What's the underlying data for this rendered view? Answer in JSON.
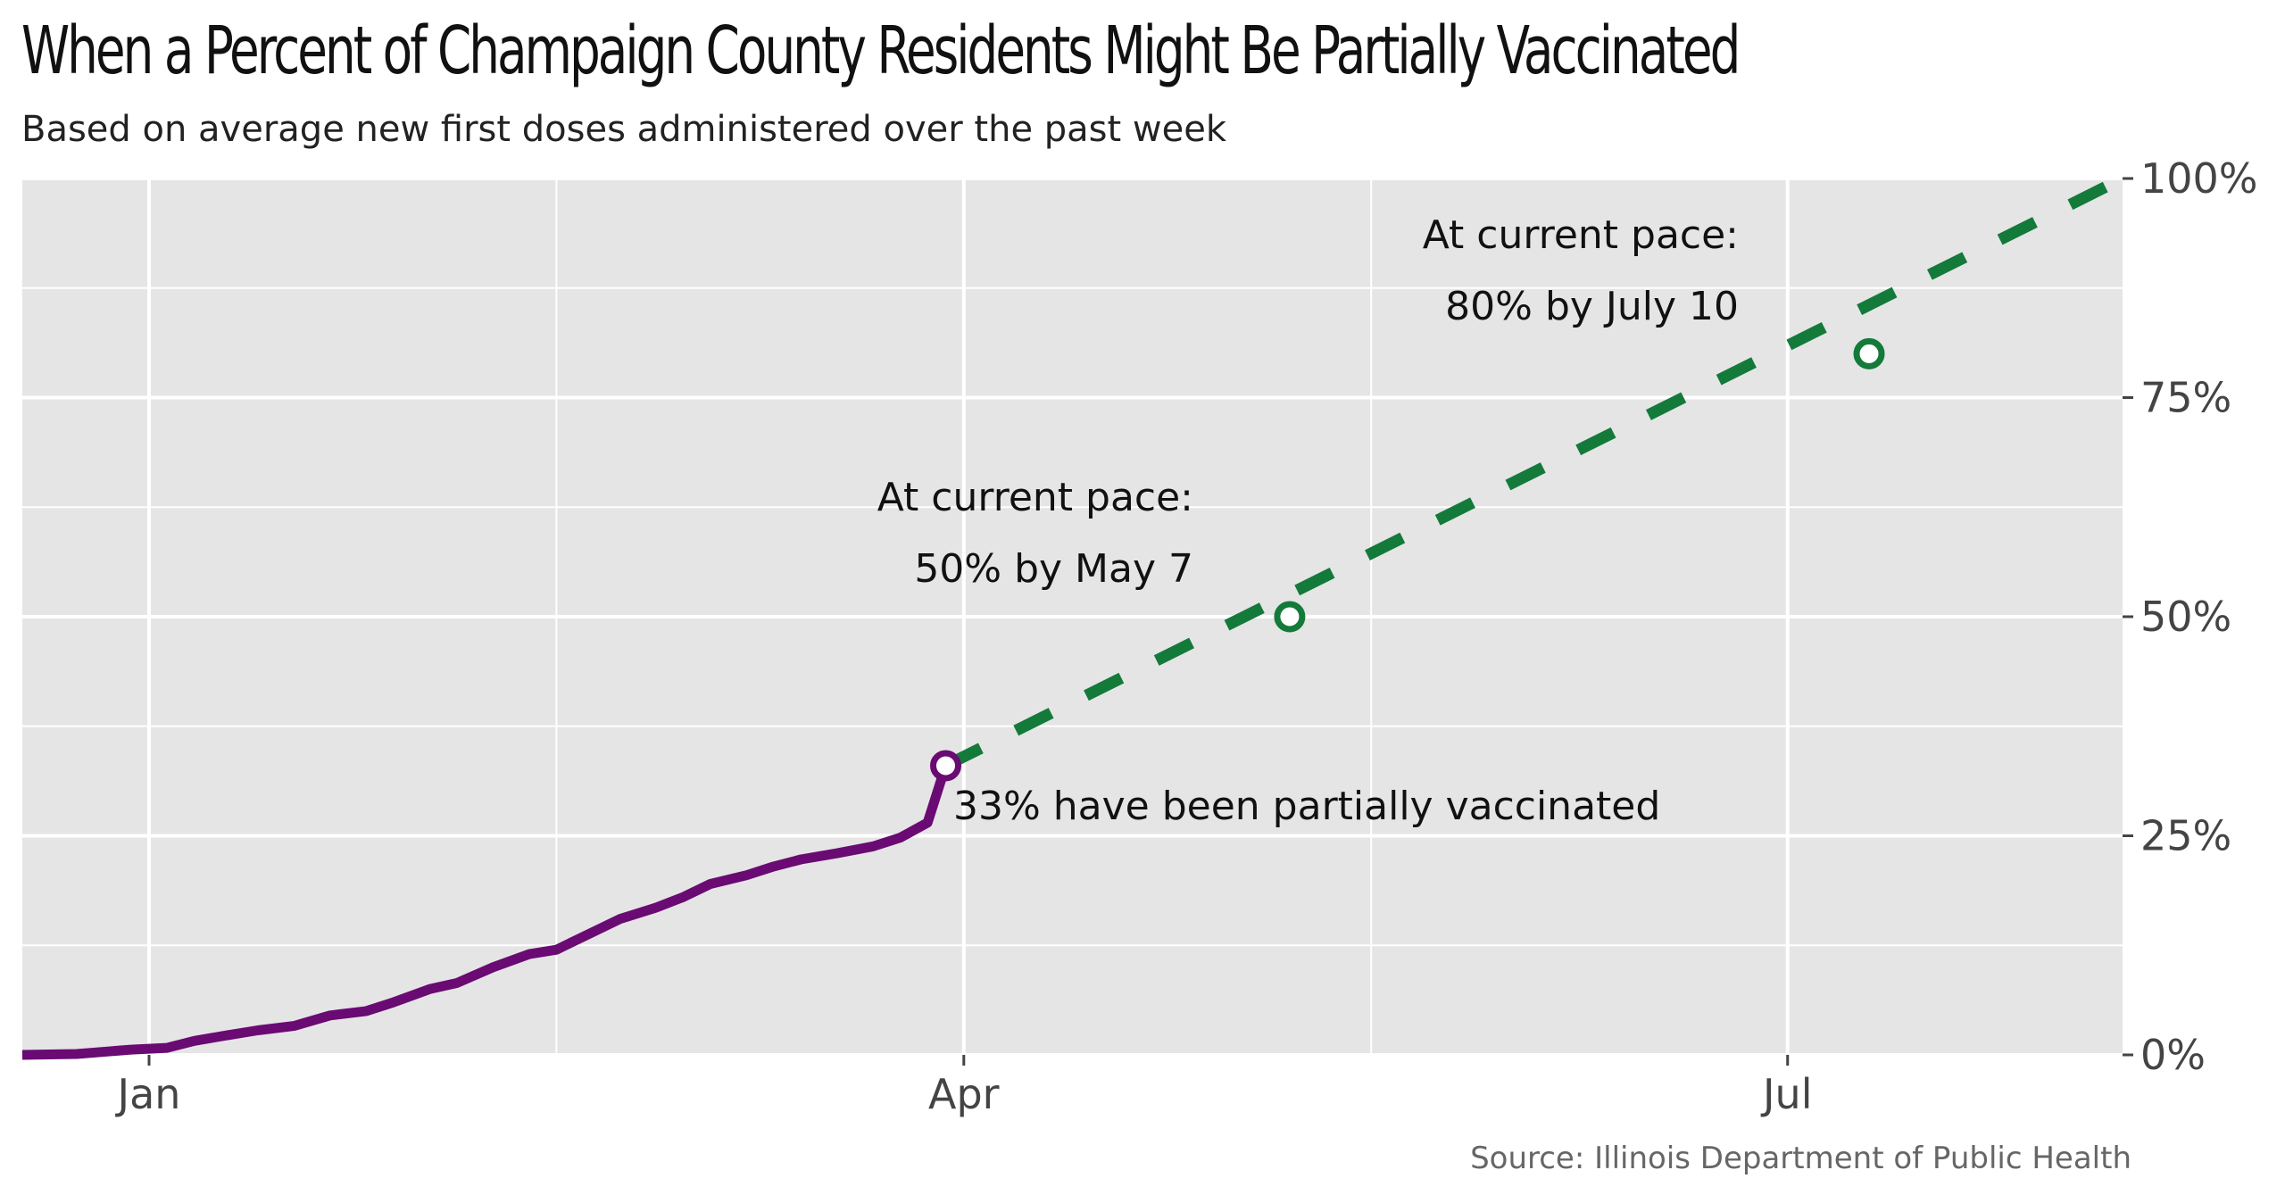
{
  "title": "When a Percent of Champaign County Residents Might Be Partially Vaccinated",
  "subtitle": "Based on average new first doses administered over the past week",
  "source": "Source: Illinois Department of Public Health",
  "colors": {
    "panel": "#e5e5e5",
    "grid": "#ffffff",
    "actual": "#6a0a73",
    "projection": "#137a3a"
  },
  "chart_data": {
    "type": "line",
    "x_axis": {
      "type": "date",
      "range": [
        "2020-12-18",
        "2021-08-07"
      ],
      "ticks": [
        {
          "date": "2021-01-01",
          "label": "Jan"
        },
        {
          "date": "2021-04-01",
          "label": "Apr"
        },
        {
          "date": "2021-07-01",
          "label": "Jul"
        }
      ],
      "minor_ticks": [
        "2021-02-15",
        "2021-05-16",
        "2021-08-15"
      ]
    },
    "y_axis": {
      "range": [
        0,
        100
      ],
      "position": "right",
      "ticks": [
        {
          "value": 0,
          "label": "0%"
        },
        {
          "value": 25,
          "label": "25%"
        },
        {
          "value": 50,
          "label": "50%"
        },
        {
          "value": 75,
          "label": "75%"
        },
        {
          "value": 100,
          "label": "100%"
        }
      ],
      "minor_ticks": [
        12.5,
        37.5,
        62.5,
        87.5
      ]
    },
    "grid": true,
    "series": [
      {
        "style": "solid",
        "color": "#6a0a73",
        "points": [
          [
            "2020-12-18",
            0
          ],
          [
            "2020-12-24",
            0.1
          ],
          [
            "2020-12-30",
            0.6
          ],
          [
            "2021-01-03",
            0.8
          ],
          [
            "2021-01-06",
            1.6
          ],
          [
            "2021-01-10",
            2.3
          ],
          [
            "2021-01-13",
            2.8
          ],
          [
            "2021-01-17",
            3.3
          ],
          [
            "2021-01-21",
            4.5
          ],
          [
            "2021-01-25",
            5.0
          ],
          [
            "2021-01-28",
            6.0
          ],
          [
            "2021-02-01",
            7.5
          ],
          [
            "2021-02-04",
            8.2
          ],
          [
            "2021-02-08",
            10.0
          ],
          [
            "2021-02-12",
            11.5
          ],
          [
            "2021-02-15",
            12.0
          ],
          [
            "2021-02-18",
            13.5
          ],
          [
            "2021-02-22",
            15.5
          ],
          [
            "2021-02-26",
            16.8
          ],
          [
            "2021-03-01",
            18.0
          ],
          [
            "2021-03-04",
            19.5
          ],
          [
            "2021-03-08",
            20.5
          ],
          [
            "2021-03-11",
            21.5
          ],
          [
            "2021-03-14",
            22.3
          ],
          [
            "2021-03-18",
            23.0
          ],
          [
            "2021-03-22",
            23.8
          ],
          [
            "2021-03-25",
            24.8
          ],
          [
            "2021-03-28",
            26.5
          ],
          [
            "2021-03-31",
            28.0
          ],
          [
            "2021-04-03",
            29.5
          ],
          [
            "2021-04-06",
            31.0
          ],
          [
            "2021-04-08",
            32.0
          ],
          [
            "2021-03-30",
            33.0
          ]
        ]
      },
      {
        "style": "dashed",
        "color": "#137a3a",
        "points": [
          [
            "2021-03-30",
            33
          ],
          [
            "2021-08-07",
            100
          ]
        ]
      }
    ],
    "markers": [
      {
        "date": "2021-03-30",
        "value": 33,
        "color": "#6a0a73"
      },
      {
        "date": "2021-05-07",
        "value": 50,
        "color": "#137a3a"
      },
      {
        "date": "2021-07-10",
        "value": 80,
        "color": "#137a3a"
      }
    ],
    "annotations": [
      {
        "lines": [
          "33% have been partially vaccinated"
        ],
        "anchor": "start"
      },
      {
        "lines": [
          "At current pace:",
          "50% by May 7"
        ],
        "anchor": "end"
      },
      {
        "lines": [
          "At current pace:",
          "80% by July 10"
        ],
        "anchor": "end"
      }
    ]
  }
}
